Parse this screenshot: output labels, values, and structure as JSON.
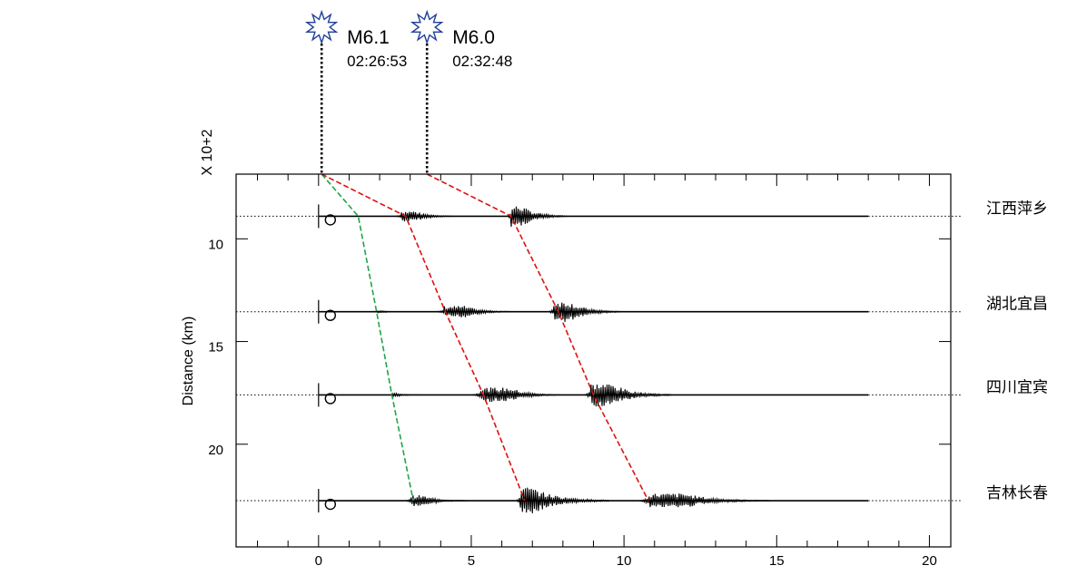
{
  "chart_data": {
    "type": "line",
    "title": "",
    "xlabel": "",
    "ylabel": "Distance (km)",
    "y_multiplier": "X 10+2",
    "xlim": [
      -2.7,
      20.7
    ],
    "ylim": [
      25.0,
      6.85
    ],
    "xticks_major": [
      0,
      5,
      10,
      15,
      20
    ],
    "xticks_minor": [
      -2,
      -1,
      1,
      2,
      3,
      4,
      6,
      7,
      8,
      9,
      11,
      12,
      13,
      14,
      16,
      17,
      18,
      19
    ],
    "yticks_major": [
      10,
      15,
      20
    ],
    "yticks_labels": [
      "10",
      "15",
      "20"
    ],
    "grid": false,
    "stations": [
      {
        "name": "江西萍乡",
        "distance": 8.9
      },
      {
        "name": "湖北宜昌",
        "distance": 13.55
      },
      {
        "name": "四川宜宾",
        "distance": 17.6
      },
      {
        "name": "吉林长春",
        "distance": 22.75
      }
    ],
    "trace_range": [
      0,
      18
    ],
    "events": [
      {
        "magnitude": "M6.1",
        "time": "02:26:53",
        "origin_x": 0.1
      },
      {
        "magnitude": "M6.0",
        "time": "02:32:48",
        "origin_x": 3.55
      }
    ],
    "bursts": [
      {
        "station": 0,
        "x": 2.7,
        "amp": 0.28,
        "width": 0.45,
        "width2": 1.3
      },
      {
        "station": 0,
        "x": 6.3,
        "amp": 0.55,
        "width": 0.35,
        "width2": 1.5
      },
      {
        "station": 1,
        "x": 1.9,
        "amp": 0.06,
        "width": 0.2,
        "width2": 0.6
      },
      {
        "station": 1,
        "x": 4.1,
        "amp": 0.3,
        "width": 0.7,
        "width2": 1.6
      },
      {
        "station": 1,
        "x": 7.7,
        "amp": 0.55,
        "width": 0.5,
        "width2": 1.7
      },
      {
        "station": 2,
        "x": 2.4,
        "amp": 0.08,
        "width": 0.2,
        "width2": 0.7
      },
      {
        "station": 2,
        "x": 5.3,
        "amp": 0.38,
        "width": 1.0,
        "width2": 1.6
      },
      {
        "station": 2,
        "x": 8.9,
        "amp": 0.6,
        "width": 0.7,
        "width2": 2.0
      },
      {
        "station": 3,
        "x": 3.0,
        "amp": 0.28,
        "width": 0.4,
        "width2": 1.5
      },
      {
        "station": 3,
        "x": 6.6,
        "amp": 0.72,
        "width": 0.35,
        "width2": 2.6
      },
      {
        "station": 3,
        "x": 10.8,
        "amp": 0.38,
        "width": 1.2,
        "width2": 2.8
      }
    ],
    "series": [
      {
        "color": "#22a34a",
        "points": [
          [
            0.1,
            6.85
          ],
          [
            1.3,
            8.9
          ],
          [
            1.9,
            13.55
          ],
          [
            2.4,
            17.6
          ],
          [
            3.1,
            22.75
          ]
        ]
      },
      {
        "color": "#dd1111",
        "points": [
          [
            0.1,
            6.85
          ],
          [
            2.85,
            8.9
          ],
          [
            4.15,
            13.55
          ],
          [
            5.4,
            17.6
          ],
          [
            6.75,
            22.75
          ]
        ]
      },
      {
        "color": "#dd1111",
        "points": [
          [
            3.55,
            6.85
          ],
          [
            6.3,
            8.9
          ],
          [
            7.85,
            13.55
          ],
          [
            9.0,
            17.6
          ],
          [
            10.8,
            22.75
          ]
        ]
      }
    ]
  }
}
